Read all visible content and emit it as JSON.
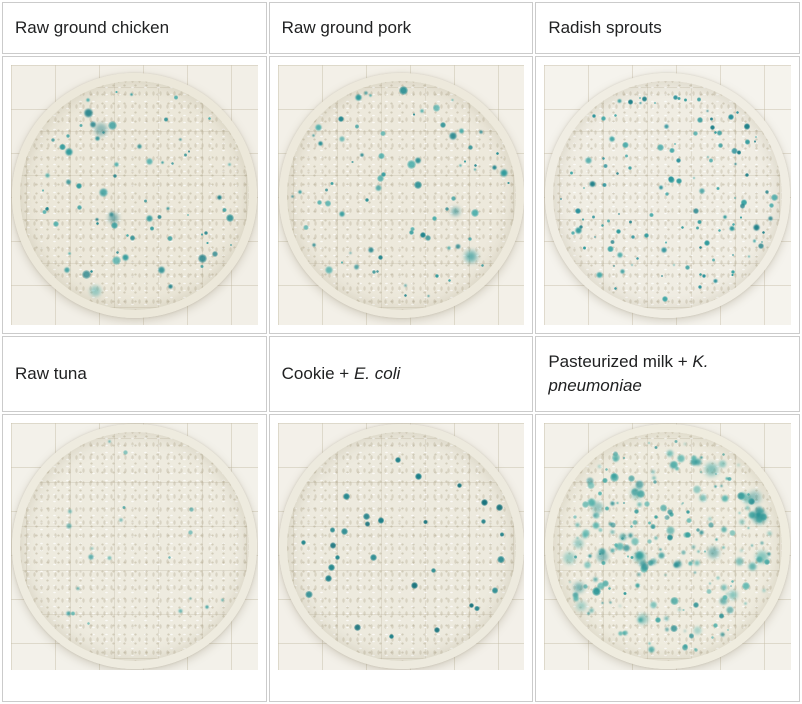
{
  "page": {
    "border_color": "#cbcbcb",
    "text_color": "#202122",
    "colony_accent_color": "#2f9a9c"
  },
  "table": {
    "cells": [
      {
        "id": "raw-ground-chicken",
        "label_parts": [
          {
            "text": "Raw ground chicken",
            "italic": false
          }
        ],
        "dish": {
          "seed": 101,
          "colony_count": 68,
          "size_min": 2.5,
          "size_max": 9.5,
          "size_pow": 1.8,
          "alpha_min": 0.72,
          "alpha_max": 1.0,
          "blur_max": 0.7,
          "large_fuzzy": 3,
          "palette": [
            "#2f9a9c",
            "#2a8f94",
            "#47acaa",
            "#1f8089"
          ],
          "paper": "#f2efe7",
          "agar": "#ece8da"
        }
      },
      {
        "id": "raw-ground-pork",
        "label_parts": [
          {
            "text": "Raw ground pork",
            "italic": false
          }
        ],
        "dish": {
          "seed": 202,
          "colony_count": 72,
          "size_min": 2.5,
          "size_max": 9.0,
          "size_pow": 1.7,
          "alpha_min": 0.72,
          "alpha_max": 1.0,
          "blur_max": 0.7,
          "large_fuzzy": 2,
          "palette": [
            "#2f9a9c",
            "#2a8f94",
            "#47acaa",
            "#23858d"
          ],
          "paper": "#f3f0e8",
          "agar": "#ede9dc"
        }
      },
      {
        "id": "radish-sprouts",
        "label_parts": [
          {
            "text": "Radish sprouts",
            "italic": false
          }
        ],
        "dish": {
          "seed": 303,
          "colony_count": 122,
          "size_min": 2.0,
          "size_max": 6.8,
          "size_pow": 1.4,
          "alpha_min": 0.78,
          "alpha_max": 1.0,
          "blur_max": 0.5,
          "large_fuzzy": 0,
          "palette": [
            "#2f9a9c",
            "#27909a",
            "#3fa6a6",
            "#1f8089"
          ],
          "paper": "#f5f3ed",
          "agar": "#f0ede3"
        }
      },
      {
        "id": "raw-tuna",
        "label_parts": [
          {
            "text": "Raw tuna",
            "italic": false
          }
        ],
        "dish": {
          "seed": 404,
          "colony_count": 20,
          "size_min": 3.0,
          "size_max": 5.5,
          "size_pow": 1.2,
          "alpha_min": 0.5,
          "alpha_max": 0.85,
          "blur_max": 0.9,
          "large_fuzzy": 0,
          "palette": [
            "#3da5a4",
            "#55b1ac",
            "#2f9a9c"
          ],
          "paper": "#f3f1ea",
          "agar": "#eeebdf"
        }
      },
      {
        "id": "cookie-e-coli",
        "label_parts": [
          {
            "text": "Cookie + ",
            "italic": false
          },
          {
            "text": "E. coli",
            "italic": true
          }
        ],
        "dish": {
          "seed": 505,
          "colony_count": 30,
          "size_min": 4.5,
          "size_max": 7.5,
          "size_pow": 1.1,
          "alpha_min": 0.88,
          "alpha_max": 1.0,
          "blur_max": 0.35,
          "large_fuzzy": 0,
          "palette": [
            "#1d7f88",
            "#17727c",
            "#27898f"
          ],
          "paper": "#f3f0e9",
          "agar": "#edead e"
        }
      },
      {
        "id": "pasteurized-milk-k-pneumoniae",
        "label_parts": [
          {
            "text": "Pasteurized milk + ",
            "italic": false
          },
          {
            "text": "K. pneumoniae",
            "italic": true
          }
        ],
        "dish": {
          "seed": 606,
          "colony_count": 215,
          "size_min": 2.0,
          "size_max": 9.0,
          "size_pow": 1.3,
          "alpha_min": 0.55,
          "alpha_max": 0.95,
          "blur_max": 1.2,
          "large_fuzzy": 18,
          "palette": [
            "#3aa39f",
            "#2f9898",
            "#4fb0aa",
            "#2b8f93",
            "#58b5ae"
          ],
          "paper": "#f3f1ea",
          "agar": "#efecdf"
        }
      }
    ]
  }
}
